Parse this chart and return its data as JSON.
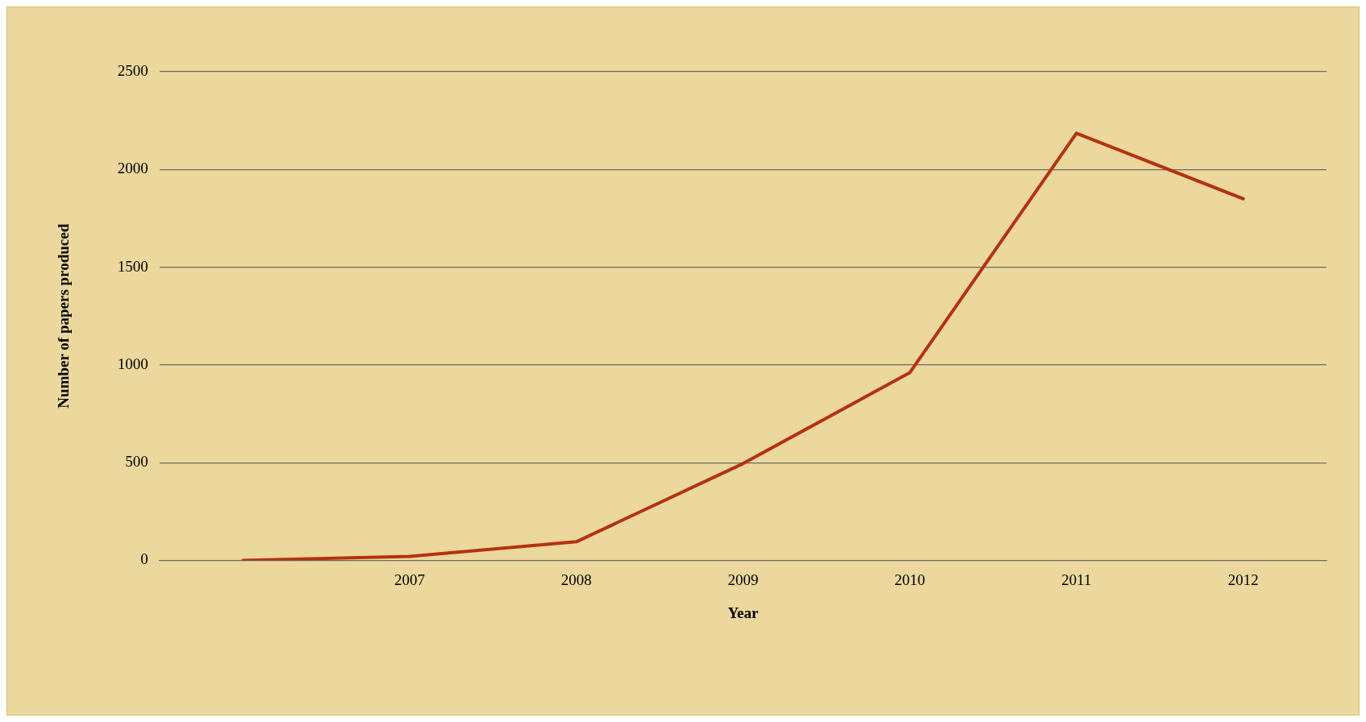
{
  "chart_data": {
    "type": "line",
    "xlabel": "Year",
    "ylabel": "Number of papers produced",
    "categories": [
      null,
      "2007",
      "2008",
      "2009",
      "2010",
      "2011",
      "2012"
    ],
    "series": [
      {
        "color": "#b5320f",
        "values": [
          0,
          20,
          95,
          495,
          960,
          2185,
          1850
        ]
      }
    ],
    "ylim": [
      0,
      2500
    ],
    "yticks": [
      0,
      500,
      1000,
      1500,
      2000,
      2500
    ],
    "grid": "y",
    "legend": false,
    "marker": "none",
    "line_style": "solid"
  }
}
